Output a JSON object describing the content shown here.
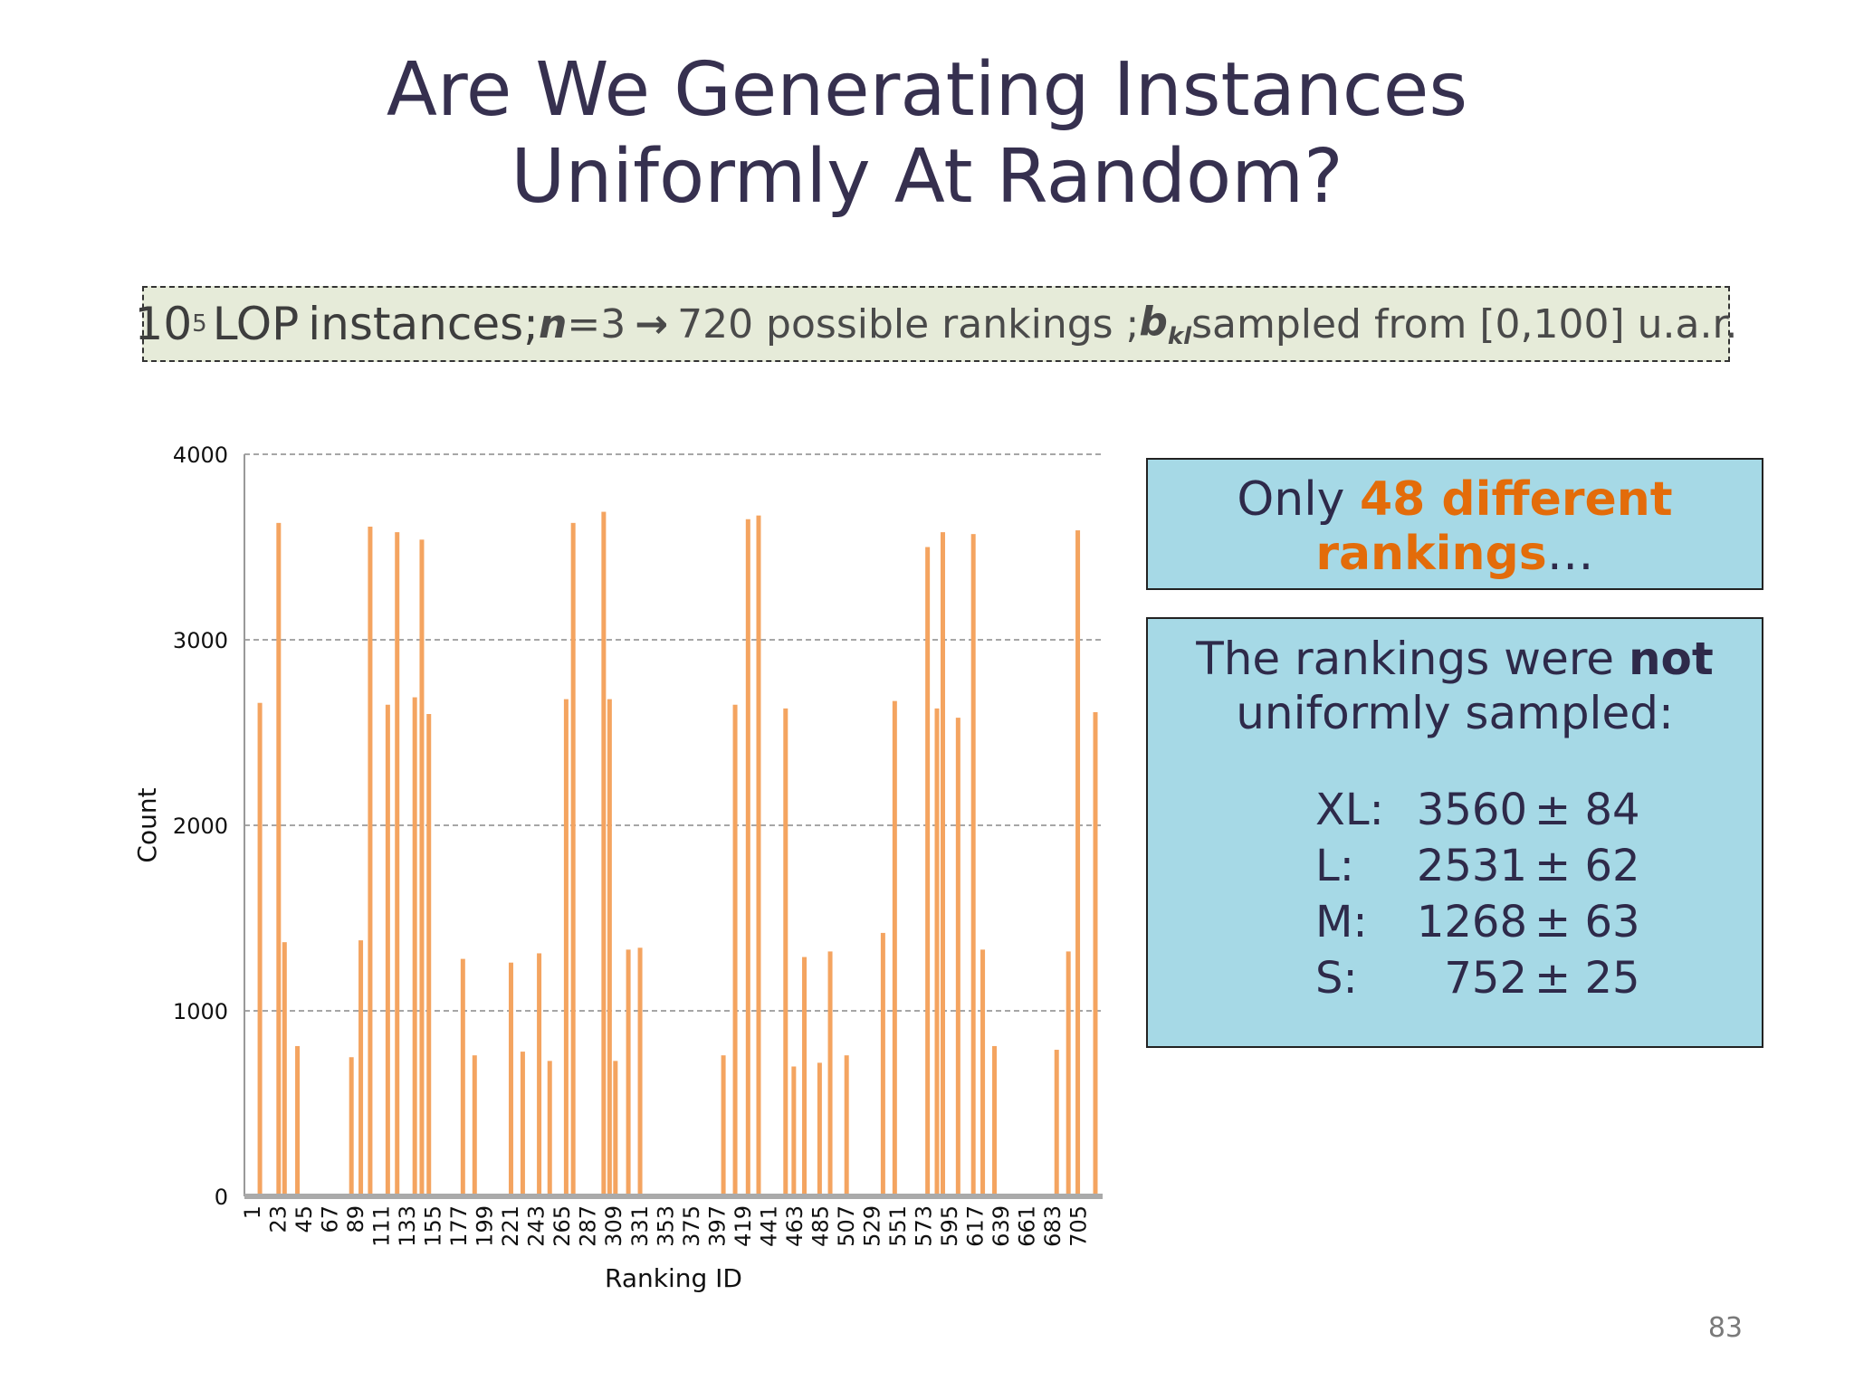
{
  "slide": {
    "title_line1": "Are We Generating Instances",
    "title_line2": "Uniformly At Random?",
    "page_number": "83"
  },
  "info": {
    "base": "10",
    "exponent": "5",
    "lop": "LOP",
    "instances": "instances;",
    "n_var": "n",
    "n_eq": "=3",
    "arrow": "→",
    "rankings_text": "720 possible rankings ;",
    "b_var": "b",
    "b_sub": "kl",
    "sampled_text": "sampled from [0,100] u.a.r."
  },
  "panel1": {
    "prefix": "Only ",
    "highlight1": "48 different",
    "highlight2": "rankings",
    "suffix": "…"
  },
  "panel2": {
    "line1_prefix": "The rankings were ",
    "line1_bold": "not",
    "line2": "uniformly sampled:",
    "stats": [
      {
        "label": "XL:",
        "value": "3560",
        "rest": "± 84"
      },
      {
        "label": "L:",
        "value": "2531",
        "rest": "± 62"
      },
      {
        "label": "M:",
        "value": "1268",
        "rest": "± 63"
      },
      {
        "label": "S:",
        "value": "752",
        "rest": "± 25"
      }
    ]
  },
  "chart_data": {
    "type": "bar",
    "xlabel": "Ranking ID",
    "ylabel": "Count",
    "ylim": [
      0,
      4000
    ],
    "yticks": [
      0,
      1000,
      2000,
      3000,
      4000
    ],
    "xlim": [
      1,
      720
    ],
    "xtick_labels": [
      "1",
      "23",
      "45",
      "67",
      "89",
      "111",
      "133",
      "155",
      "177",
      "199",
      "221",
      "243",
      "265",
      "287",
      "309",
      "331",
      "353",
      "375",
      "397",
      "419",
      "441",
      "463",
      "485",
      "507",
      "529",
      "551",
      "573",
      "595",
      "617",
      "639",
      "661",
      "683",
      "705"
    ],
    "grid": true,
    "bar_color": "#f4a460",
    "series": [
      {
        "x": [
          8,
          24,
          29,
          40,
          86,
          94,
          102,
          117,
          125,
          140,
          146,
          152,
          181,
          191,
          222,
          232,
          246,
          255,
          269,
          275,
          301,
          306,
          311,
          322,
          332,
          403,
          413,
          424,
          433,
          456,
          463,
          472,
          485,
          494,
          508,
          539,
          549,
          577,
          585,
          590,
          603,
          616,
          624,
          634,
          687,
          697,
          705,
          720
        ],
        "values": [
          2660,
          3630,
          1370,
          810,
          750,
          1380,
          3610,
          2650,
          3580,
          2690,
          3540,
          2600,
          1280,
          760,
          1260,
          780,
          1310,
          730,
          2680,
          3630,
          3690,
          2680,
          730,
          1330,
          1340,
          760,
          2650,
          3650,
          3670,
          2630,
          700,
          1290,
          720,
          1320,
          760,
          1420,
          2670,
          3500,
          2630,
          3580,
          2580,
          3570,
          1330,
          810,
          790,
          1320,
          3590,
          2610
        ]
      }
    ]
  }
}
